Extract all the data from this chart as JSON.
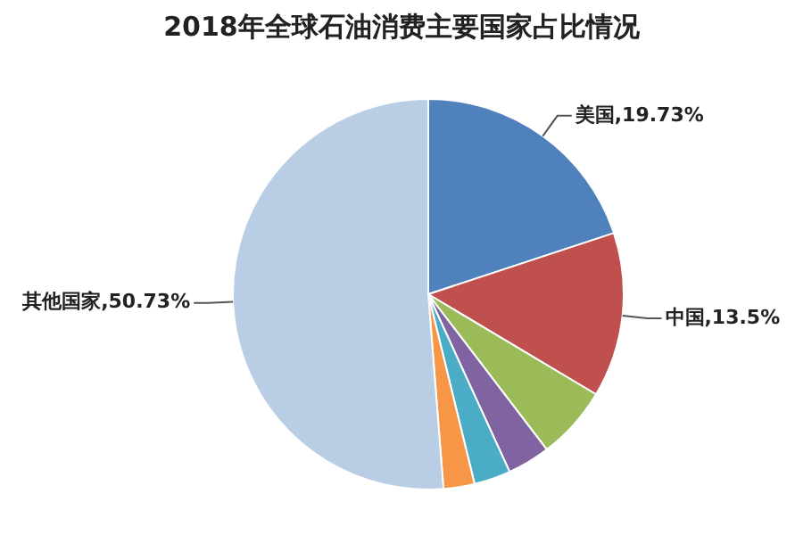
{
  "chart_data": {
    "type": "pie",
    "title": "2018年全球石油消费主要国家占比情况",
    "categories": [
      "美国",
      "中国",
      null,
      null,
      null,
      null,
      "其他国家"
    ],
    "values": [
      19.73,
      13.5,
      6,
      3.5,
      3,
      2.54,
      50.73
    ],
    "value_labels": [
      "19.73%",
      "13.5%",
      null,
      null,
      null,
      null,
      "50.73%"
    ],
    "colors": [
      "#4f81bd",
      "#c0504d",
      "#9bbb59",
      "#8064a2",
      "#4bacc6",
      "#f79646",
      "#b9cde5"
    ],
    "legend": false
  }
}
